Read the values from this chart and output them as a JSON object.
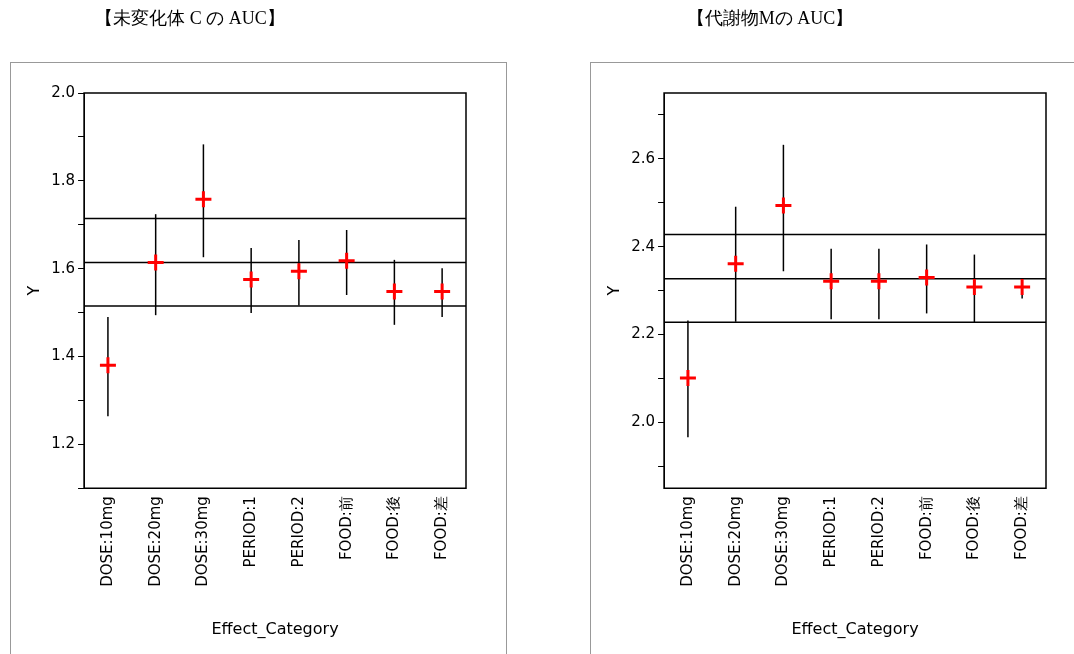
{
  "chart_data": [
    {
      "type": "scatter",
      "title": "【未変化体 C の AUC】",
      "xlabel": "Effect_Category",
      "ylabel": "Y",
      "categories": [
        "DOSE:10mg",
        "DOSE:20mg",
        "DOSE:30mg",
        "PERIOD:1",
        "PERIOD:2",
        "FOOD:前",
        "FOOD:後",
        "FOOD:差"
      ],
      "series": [
        {
          "color": "#ff0000",
          "values": [
            1.38,
            1.614,
            1.758,
            1.575,
            1.594,
            1.618,
            1.548,
            1.548
          ],
          "errors": [
            [
              1.264,
              1.49
            ],
            [
              1.494,
              1.724
            ],
            [
              1.626,
              1.883
            ],
            [
              1.499,
              1.647
            ],
            [
              1.516,
              1.665
            ],
            [
              1.54,
              1.688
            ],
            [
              1.472,
              1.62
            ],
            [
              1.49,
              1.601
            ]
          ]
        }
      ],
      "ylim": [
        1.1,
        2.0
      ],
      "yticks": [
        {
          "value": 1.1,
          "label": null
        },
        1.2,
        {
          "value": 1.3,
          "label": null
        },
        1.4,
        {
          "value": 1.5,
          "label": null
        },
        1.6,
        {
          "value": 1.7,
          "label": null
        },
        1.8,
        {
          "value": 1.9,
          "label": null
        },
        {
          "value": 2.0,
          "label": "2.0"
        }
      ],
      "ref_lines": [
        {
          "axis": "y",
          "value": 1.714
        },
        {
          "axis": "y",
          "value": 1.614
        },
        {
          "axis": "y",
          "value": 1.515
        }
      ],
      "marker": "cross",
      "grid": false,
      "legend": false
    },
    {
      "type": "scatter",
      "title": "【代謝物Mの AUC】",
      "xlabel": "Effect_Category",
      "ylabel": "Y",
      "categories": [
        "DOSE:10mg",
        "DOSE:20mg",
        "DOSE:30mg",
        "PERIOD:1",
        "PERIOD:2",
        "FOOD:前",
        "FOOD:後",
        "FOOD:差"
      ],
      "series": [
        {
          "color": "#ff0000",
          "values": [
            2.101,
            2.361,
            2.494,
            2.321,
            2.321,
            2.33,
            2.308,
            2.308
          ],
          "errors": [
            [
              1.966,
              2.232
            ],
            [
              2.229,
              2.491
            ],
            [
              2.344,
              2.632
            ],
            [
              2.235,
              2.395
            ],
            [
              2.235,
              2.395
            ],
            [
              2.248,
              2.405
            ],
            [
              2.228,
              2.382
            ],
            [
              2.282,
              2.325
            ]
          ]
        }
      ],
      "ylim": [
        1.85,
        2.75
      ],
      "yticks": [
        {
          "value": 1.9,
          "label": null
        },
        {
          "value": 2.0,
          "label": "2.0"
        },
        {
          "value": 2.1,
          "label": null
        },
        2.2,
        {
          "value": 2.3,
          "label": null
        },
        2.4,
        {
          "value": 2.5,
          "label": null
        },
        2.6,
        {
          "value": 2.7,
          "label": null
        }
      ],
      "ref_lines": [
        {
          "axis": "y",
          "value": 2.428
        },
        {
          "axis": "y",
          "value": 2.327
        },
        {
          "axis": "y",
          "value": 2.228
        }
      ],
      "marker": "cross",
      "grid": false,
      "legend": false
    }
  ]
}
